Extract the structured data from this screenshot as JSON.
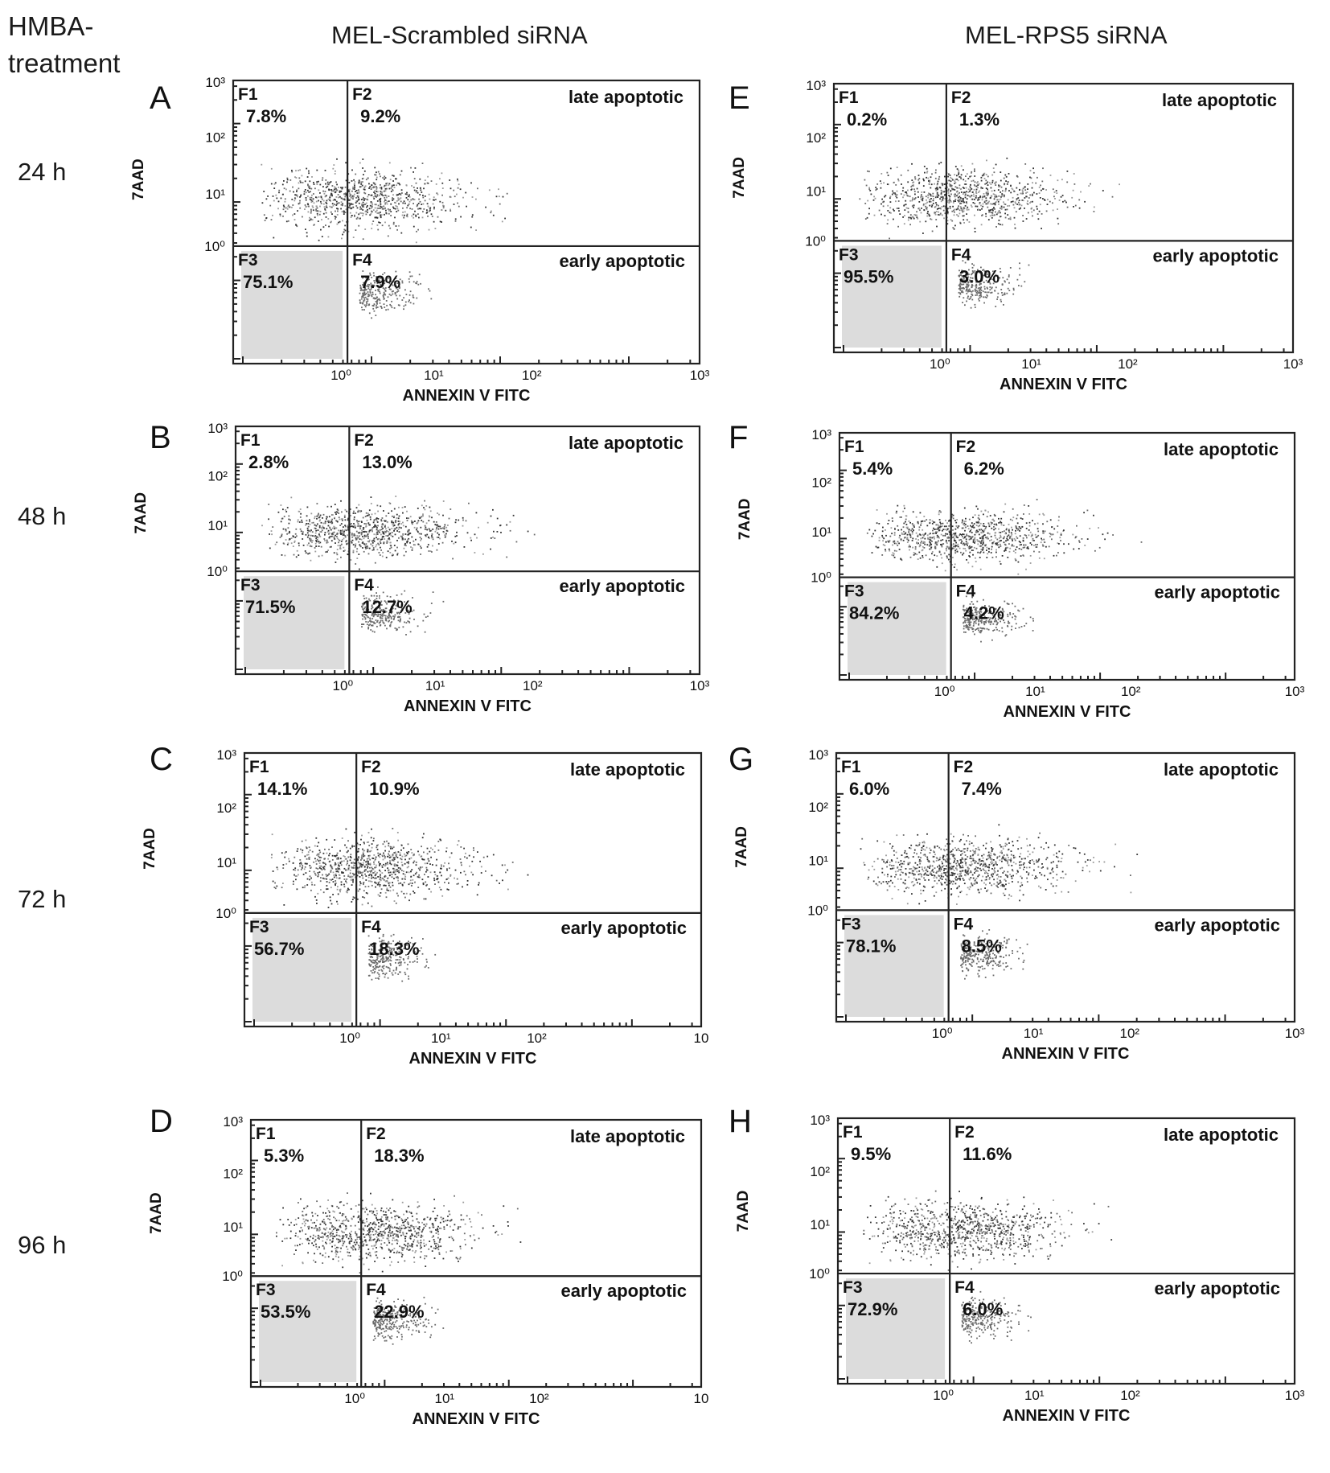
{
  "row_header": {
    "line1": "HMBA-",
    "line2": "treatment"
  },
  "columns": [
    "MEL-Scrambled  siRNA",
    "MEL-RPS5 siRNA"
  ],
  "times": [
    "24 h",
    "48 h",
    "72 h",
    "96 h"
  ],
  "colors": {
    "axis": "#222222",
    "dot_dark": "#333333",
    "dot_mid": "#6a6a6a",
    "dot_light": "#9a9a9a",
    "q3_fill": "#dcdcdc"
  },
  "chart_data": [
    {
      "type": "scatter",
      "panel": "A",
      "column": "MEL-Scrambled  siRNA",
      "time": "24 h",
      "xlabel": "ANNEXIN V FITC",
      "ylabel": "7AAD",
      "scale": "log",
      "x_ticks": [
        "10⁰",
        "10¹",
        "10²",
        "10³"
      ],
      "y_ticks": [
        "10³",
        "10²",
        "10¹",
        "10⁰"
      ],
      "quadrants": [
        {
          "id": "F1",
          "value": "7.8%",
          "label": ""
        },
        {
          "id": "F2",
          "value": "9.2%",
          "label": "late apoptotic"
        },
        {
          "id": "F3",
          "value": "75.1%",
          "label": ""
        },
        {
          "id": "F4",
          "value": "7.9%",
          "label": "early apoptotic"
        }
      ]
    },
    {
      "type": "scatter",
      "panel": "B",
      "column": "MEL-Scrambled  siRNA",
      "time": "48 h",
      "xlabel": "ANNEXIN V FITC",
      "ylabel": "7AAD",
      "scale": "log",
      "x_ticks": [
        "10⁰",
        "10¹",
        "10²",
        "10³"
      ],
      "y_ticks": [
        "10³",
        "10²",
        "10¹",
        "10⁰"
      ],
      "quadrants": [
        {
          "id": "F1",
          "value": "2.8%",
          "label": ""
        },
        {
          "id": "F2",
          "value": "13.0%",
          "label": "late apoptotic"
        },
        {
          "id": "F3",
          "value": "71.5%",
          "label": ""
        },
        {
          "id": "F4",
          "value": "12.7%",
          "label": "early apoptotic"
        }
      ]
    },
    {
      "type": "scatter",
      "panel": "C",
      "column": "MEL-Scrambled  siRNA",
      "time": "72 h",
      "xlabel": "ANNEXIN V FITC",
      "ylabel": "7AAD",
      "scale": "log",
      "x_ticks": [
        "10⁰",
        "10¹",
        "10²",
        "10"
      ],
      "y_ticks": [
        "10³",
        "10²",
        "10¹",
        "10⁰"
      ],
      "quadrants": [
        {
          "id": "F1",
          "value": "14.1%",
          "label": ""
        },
        {
          "id": "F2",
          "value": "10.9%",
          "label": "late apoptotic"
        },
        {
          "id": "F3",
          "value": "56.7%",
          "label": ""
        },
        {
          "id": "F4",
          "value": "18.3%",
          "label": "early apoptotic"
        }
      ]
    },
    {
      "type": "scatter",
      "panel": "D",
      "column": "MEL-Scrambled  siRNA",
      "time": "96 h",
      "xlabel": "ANNEXIN V FITC",
      "ylabel": "7AAD",
      "scale": "log",
      "x_ticks": [
        "10⁰",
        "10¹",
        "10²",
        "10"
      ],
      "y_ticks": [
        "10³",
        "10²",
        "10¹",
        "10⁰"
      ],
      "quadrants": [
        {
          "id": "F1",
          "value": "5.3%",
          "label": ""
        },
        {
          "id": "F2",
          "value": "18.3%",
          "label": "late apoptotic"
        },
        {
          "id": "F3",
          "value": "53.5%",
          "label": ""
        },
        {
          "id": "F4",
          "value": "22.9%",
          "label": "early apoptotic"
        }
      ]
    },
    {
      "type": "scatter",
      "panel": "E",
      "column": "MEL-RPS5 siRNA",
      "time": "24 h",
      "xlabel": "ANNEXIN V FITC",
      "ylabel": "7AAD",
      "scale": "log",
      "x_ticks": [
        "10⁰",
        "10¹",
        "10²",
        "10³"
      ],
      "y_ticks": [
        "10³",
        "10²",
        "10¹",
        "10⁰"
      ],
      "quadrants": [
        {
          "id": "F1",
          "value": "0.2%",
          "label": ""
        },
        {
          "id": "F2",
          "value": "1.3%",
          "label": "late apoptotic"
        },
        {
          "id": "F3",
          "value": "95.5%",
          "label": ""
        },
        {
          "id": "F4",
          "value": "3.0%",
          "label": "early apoptotic"
        }
      ]
    },
    {
      "type": "scatter",
      "panel": "F",
      "column": "MEL-RPS5 siRNA",
      "time": "48 h",
      "xlabel": "ANNEXIN V FITC",
      "ylabel": "7AAD",
      "scale": "log",
      "x_ticks": [
        "10⁰",
        "10¹",
        "10²",
        "10³"
      ],
      "y_ticks": [
        "10³",
        "10²",
        "10¹",
        "10⁰"
      ],
      "quadrants": [
        {
          "id": "F1",
          "value": "5.4%",
          "label": ""
        },
        {
          "id": "F2",
          "value": "6.2%",
          "label": "late apoptotic"
        },
        {
          "id": "F3",
          "value": "84.2%",
          "label": ""
        },
        {
          "id": "F4",
          "value": "4.2%",
          "label": "early apoptotic"
        }
      ]
    },
    {
      "type": "scatter",
      "panel": "G",
      "column": "MEL-RPS5 siRNA",
      "time": "72 h",
      "xlabel": "ANNEXIN V FITC",
      "ylabel": "7AAD",
      "scale": "log",
      "x_ticks": [
        "10⁰",
        "10¹",
        "10²",
        "10³"
      ],
      "y_ticks": [
        "10³",
        "10²",
        "10¹",
        "10⁰"
      ],
      "quadrants": [
        {
          "id": "F1",
          "value": "6.0%",
          "label": ""
        },
        {
          "id": "F2",
          "value": "7.4%",
          "label": "late apoptotic"
        },
        {
          "id": "F3",
          "value": "78.1%",
          "label": ""
        },
        {
          "id": "F4",
          "value": "8.5%",
          "label": "early apoptotic"
        }
      ]
    },
    {
      "type": "scatter",
      "panel": "H",
      "column": "MEL-RPS5 siRNA",
      "time": "96 h",
      "xlabel": "ANNEXIN V FITC",
      "ylabel": "7AAD",
      "scale": "log",
      "x_ticks": [
        "10⁰",
        "10¹",
        "10²",
        "10³"
      ],
      "y_ticks": [
        "10³",
        "10²",
        "10¹",
        "10⁰"
      ],
      "quadrants": [
        {
          "id": "F1",
          "value": "9.5%",
          "label": ""
        },
        {
          "id": "F2",
          "value": "11.6%",
          "label": "late apoptotic"
        },
        {
          "id": "F3",
          "value": "72.9%",
          "label": ""
        },
        {
          "id": "F4",
          "value": "6.0%",
          "label": "early apoptotic"
        }
      ]
    }
  ]
}
